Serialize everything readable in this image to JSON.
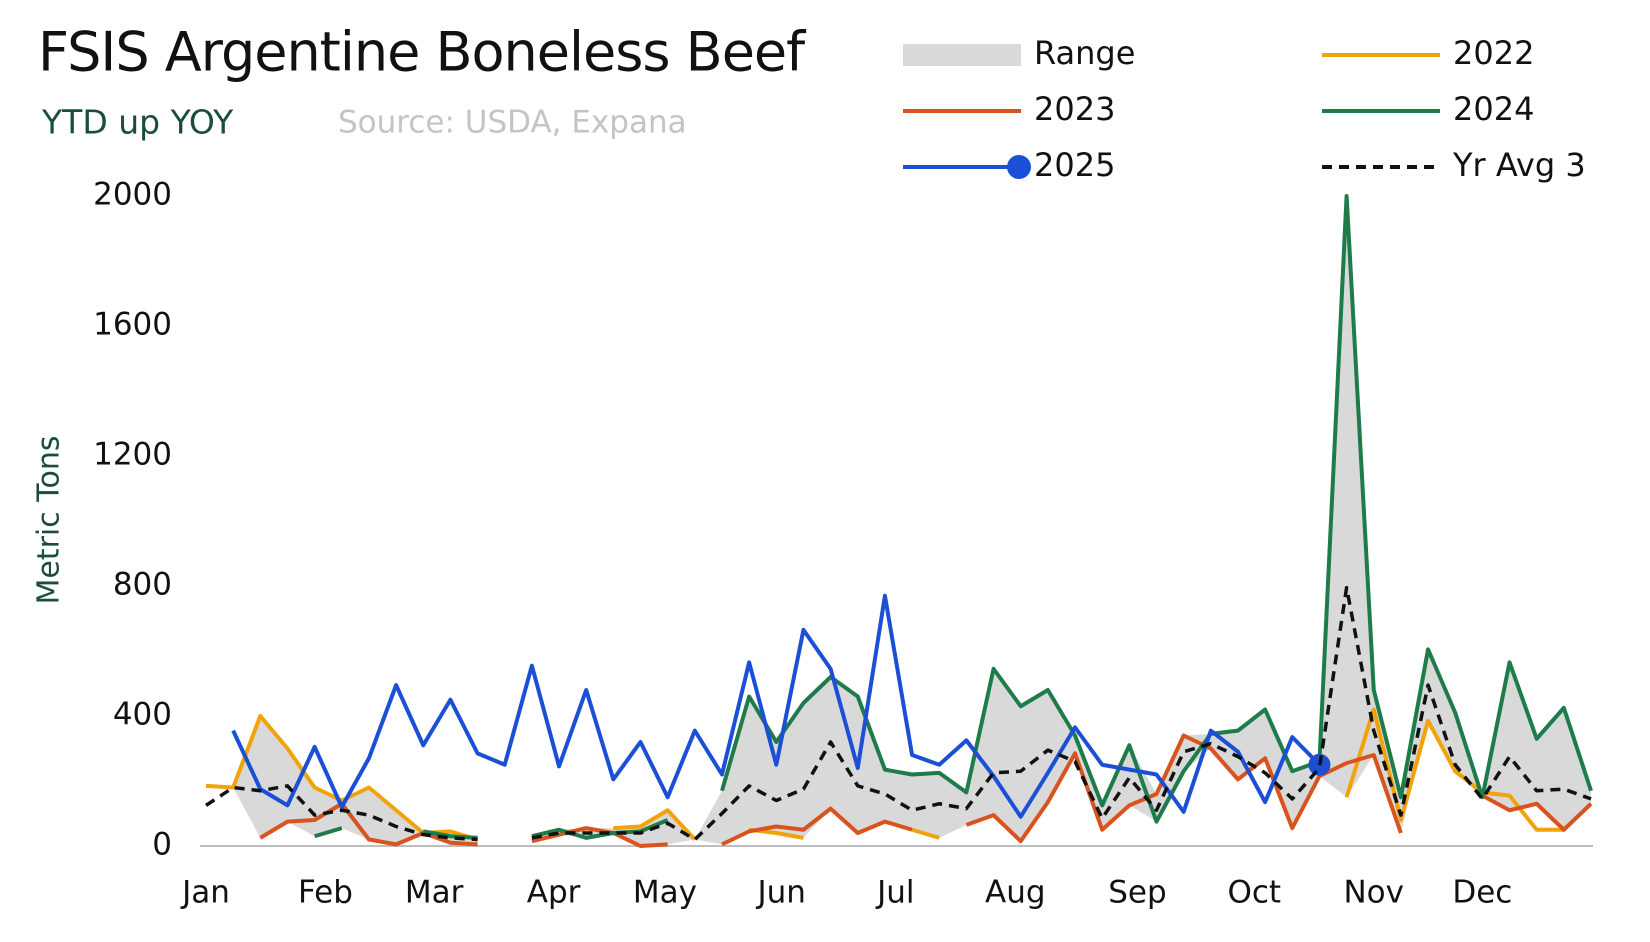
{
  "chart_data": {
    "type": "line",
    "title": "FSIS Argentine Boneless Beef",
    "subtitle": "YTD up YOY",
    "source": "Source: USDA, Expana",
    "y_label": "Metric Tons",
    "x": [
      1,
      2,
      3,
      4,
      5,
      6,
      7,
      8,
      9,
      10,
      11,
      12,
      13,
      14,
      15,
      16,
      17,
      18,
      19,
      20,
      21,
      22,
      23,
      24,
      25,
      26,
      27,
      28,
      29,
      30,
      31,
      32,
      33,
      34,
      35,
      36,
      37,
      38,
      39,
      40,
      41,
      42,
      43,
      44,
      45,
      46,
      47,
      48,
      49,
      50,
      51,
      52
    ],
    "xlim": [
      0.8,
      52.1
    ],
    "xticks": [
      {
        "value": 1,
        "label": "Jan"
      },
      {
        "value": 5.4,
        "label": "Feb"
      },
      {
        "value": 9.4,
        "label": "Mar"
      },
      {
        "value": 13.8,
        "label": "Apr"
      },
      {
        "value": 17.9,
        "label": "May"
      },
      {
        "value": 22.2,
        "label": "Jun"
      },
      {
        "value": 26.4,
        "label": "Jul"
      },
      {
        "value": 30.8,
        "label": "Aug"
      },
      {
        "value": 35.3,
        "label": "Sep"
      },
      {
        "value": 39.6,
        "label": "Oct"
      },
      {
        "value": 44,
        "label": "Nov"
      },
      {
        "value": 48,
        "label": "Dec"
      }
    ],
    "ylim": [
      0,
      2000
    ],
    "yticks": [
      0,
      400,
      800,
      1200,
      1600,
      2000
    ],
    "grid": false,
    "legend": "top-right",
    "range": {
      "name": "Range",
      "color": "#d9d9d9",
      "low": [
        185,
        180,
        25,
        75,
        30,
        55,
        20,
        5,
        40,
        10,
        5,
        null,
        15,
        35,
        25,
        40,
        0,
        5,
        20,
        5,
        45,
        40,
        25,
        115,
        40,
        75,
        50,
        25,
        65,
        95,
        15,
        135,
        285,
        50,
        125,
        75,
        230,
        300,
        205,
        270,
        55,
        215,
        150,
        280,
        40,
        385,
        230,
        150,
        110,
        130,
        50,
        130
      ],
      "high": [
        185,
        180,
        400,
        300,
        180,
        140,
        180,
        110,
        45,
        45,
        25,
        null,
        30,
        50,
        55,
        55,
        60,
        110,
        20,
        170,
        460,
        320,
        440,
        520,
        460,
        235,
        220,
        225,
        165,
        545,
        430,
        480,
        340,
        125,
        310,
        160,
        340,
        345,
        355,
        420,
        230,
        260,
        2000,
        480,
        150,
        605,
        410,
        165,
        565,
        330,
        425,
        170
      ]
    },
    "series": [
      {
        "name": "2022",
        "color": "#f0a30a",
        "values": [
          185,
          180,
          400,
          300,
          180,
          140,
          180,
          110,
          40,
          45,
          20,
          null,
          null,
          null,
          null,
          55,
          60,
          110,
          20,
          null,
          50,
          40,
          25,
          null,
          null,
          null,
          50,
          25,
          null,
          null,
          null,
          null,
          null,
          null,
          null,
          null,
          null,
          null,
          null,
          null,
          null,
          null,
          150,
          420,
          80,
          385,
          230,
          165,
          155,
          50,
          50,
          null
        ]
      },
      {
        "name": "2023",
        "color": "#d9531e",
        "values": [
          null,
          null,
          25,
          75,
          80,
          130,
          20,
          5,
          40,
          10,
          5,
          null,
          15,
          35,
          55,
          40,
          0,
          5,
          null,
          5,
          45,
          60,
          50,
          115,
          40,
          75,
          50,
          null,
          65,
          95,
          15,
          135,
          285,
          50,
          125,
          160,
          340,
          300,
          205,
          270,
          55,
          215,
          255,
          280,
          40,
          null,
          null,
          155,
          110,
          130,
          50,
          130
        ]
      },
      {
        "name": "2024",
        "color": "#1e7b4a",
        "values": [
          null,
          null,
          null,
          null,
          30,
          55,
          null,
          null,
          45,
          30,
          25,
          null,
          30,
          50,
          25,
          40,
          45,
          80,
          null,
          170,
          460,
          320,
          440,
          520,
          460,
          235,
          220,
          225,
          165,
          545,
          430,
          480,
          340,
          125,
          310,
          75,
          230,
          345,
          355,
          420,
          230,
          260,
          2000,
          480,
          150,
          605,
          410,
          150,
          565,
          330,
          425,
          170
        ]
      },
      {
        "name": "2025",
        "color": "#1a4fd6",
        "marker": "end",
        "values": [
          null,
          355,
          175,
          125,
          305,
          120,
          270,
          495,
          310,
          450,
          285,
          250,
          555,
          245,
          480,
          205,
          320,
          150,
          355,
          220,
          565,
          250,
          665,
          545,
          240,
          770,
          280,
          250,
          325,
          215,
          90,
          225,
          365,
          250,
          235,
          220,
          105,
          355,
          290,
          135,
          335,
          250,
          null,
          null,
          null,
          null,
          null,
          null,
          null,
          null,
          null,
          null
        ]
      },
      {
        "name": "Yr Avg 3",
        "color": "#111111",
        "dash": "dashed",
        "values": [
          125,
          180,
          170,
          185,
          95,
          110,
          95,
          60,
          35,
          25,
          20,
          null,
          25,
          40,
          40,
          40,
          40,
          70,
          20,
          100,
          185,
          140,
          175,
          320,
          185,
          160,
          110,
          130,
          115,
          225,
          230,
          295,
          260,
          85,
          210,
          110,
          290,
          315,
          275,
          225,
          145,
          240,
          795,
          355,
          95,
          495,
          250,
          145,
          275,
          170,
          175,
          145
        ]
      }
    ]
  }
}
